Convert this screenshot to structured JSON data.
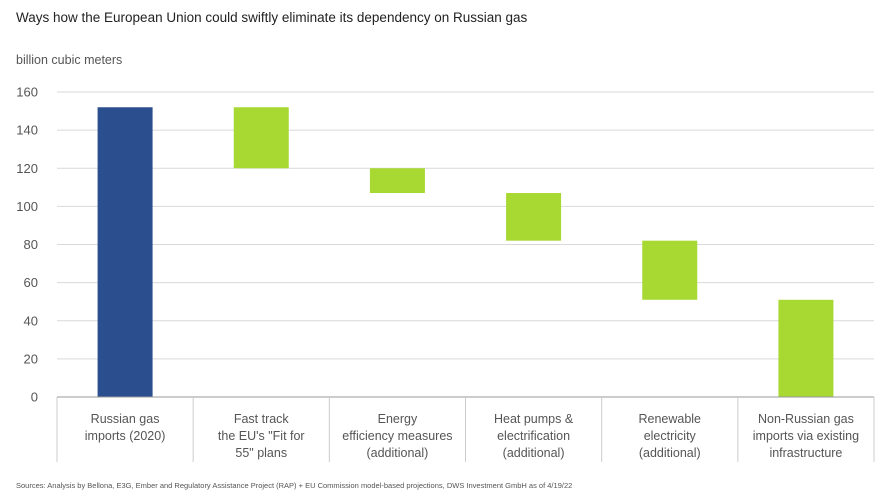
{
  "title": "Ways how the European Union could swiftly eliminate its dependency on Russian gas",
  "source": "Sources: Analysis by Bellona, E3G, Ember and Regulatory Assistance Project (RAP) + EU Commission model-based projections, DWS Investment GmbH as of 4/19/22",
  "chart_data": {
    "type": "bar",
    "subtype": "waterfall",
    "ylabel": "billion cubic meters",
    "ylim": [
      0,
      160
    ],
    "yticks": [
      0,
      20,
      40,
      60,
      80,
      100,
      120,
      140,
      160
    ],
    "grid": true,
    "colors": {
      "total": "#2b4e8e",
      "step": "#a8d832"
    },
    "categories": [
      [
        "Russian gas",
        "imports (2020)"
      ],
      [
        "Fast track",
        "the EU's \"Fit for",
        "55\" plans"
      ],
      [
        "Energy",
        "efficiency measures",
        "(additional)"
      ],
      [
        "Heat pumps &",
        "electrification",
        "(additional)"
      ],
      [
        "Renewable",
        "electricity",
        "(additional)"
      ],
      [
        "Non-Russian gas",
        "imports via existing",
        "infrastructure"
      ]
    ],
    "bars": [
      {
        "kind": "total",
        "start": 0,
        "end": 152
      },
      {
        "kind": "step",
        "start": 120,
        "end": 152
      },
      {
        "kind": "step",
        "start": 107,
        "end": 120
      },
      {
        "kind": "step",
        "start": 82,
        "end": 107
      },
      {
        "kind": "step",
        "start": 51,
        "end": 82
      },
      {
        "kind": "step",
        "start": 0,
        "end": 51
      }
    ]
  }
}
